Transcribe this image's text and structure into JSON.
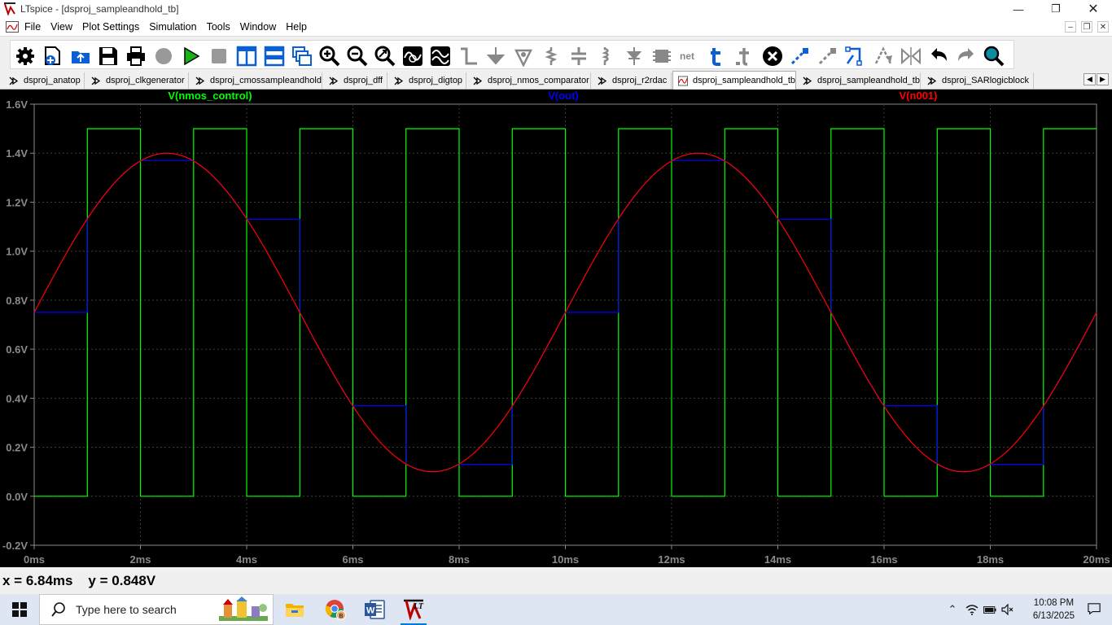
{
  "window": {
    "title": "LTspice - [dsproj_sampleandhold_tb]",
    "controls": [
      "minimize",
      "restore",
      "close"
    ]
  },
  "menu": {
    "items": [
      "File",
      "View",
      "Plot Settings",
      "Simulation",
      "Tools",
      "Window",
      "Help"
    ]
  },
  "toolbar": {
    "buttons": [
      "settings-icon",
      "new-schematic-icon",
      "open-icon",
      "save-icon",
      "print-icon",
      "cut-icon-disabled",
      "run-icon",
      "halt-icon-disabled",
      "tile-vertical-icon",
      "tile-horizontal-icon",
      "cascade-icon",
      "zoom-in-icon",
      "zoom-out-icon",
      "zoom-fit-icon",
      "autorange-icon",
      "sine-wave-icon",
      "wire-icon",
      "ground-icon",
      "label-icon",
      "resistor-icon",
      "capacitor-icon",
      "inductor-icon",
      "diode-icon",
      "component-icon",
      "net-icon",
      "text-icon",
      "spice-directive-icon",
      "delete-icon",
      "duplicate-icon",
      "move-icon",
      "drag-icon",
      "rotate-icon",
      "mirror-icon",
      "undo-icon",
      "redo-icon",
      "find-icon"
    ]
  },
  "tabs": [
    {
      "label": "dsproj_anatop",
      "active": false
    },
    {
      "label": "dsproj_clkgenerator",
      "active": false
    },
    {
      "label": "dsproj_cmossampleandhold",
      "active": false
    },
    {
      "label": "dsproj_dff",
      "active": false
    },
    {
      "label": "dsproj_digtop",
      "active": false
    },
    {
      "label": "dsproj_nmos_comparator",
      "active": false
    },
    {
      "label": "dsproj_r2rdac",
      "active": false
    },
    {
      "label": "dsproj_sampleandhold_tb",
      "active": true
    },
    {
      "label": "dsproj_sampleandhold_tb",
      "active": false
    },
    {
      "label": "dsproj_SARlogicblock",
      "active": false
    }
  ],
  "chart_data": {
    "type": "line",
    "title": "",
    "xlabel": "",
    "ylabel": "",
    "xlim": [
      0,
      20
    ],
    "ylim": [
      -0.2,
      1.6
    ],
    "x_unit": "ms",
    "y_unit": "V",
    "grid": true,
    "x_ticks": [
      "0ms",
      "2ms",
      "4ms",
      "6ms",
      "8ms",
      "10ms",
      "12ms",
      "14ms",
      "16ms",
      "18ms",
      "20ms"
    ],
    "y_ticks": [
      "1.6V",
      "1.4V",
      "1.2V",
      "1.0V",
      "0.8V",
      "0.6V",
      "0.4V",
      "0.2V",
      "0.0V",
      "-0.2V"
    ],
    "series": [
      {
        "name": "V(nmos_control)",
        "color": "#00ff00",
        "kind": "square",
        "low": 0.0,
        "high": 1.5,
        "period_ms": 2.0,
        "high_start_ms": 1.0,
        "high_duration_ms": 1.0,
        "initial_ms": 0.0
      },
      {
        "name": "V(out)",
        "color": "#0000ff",
        "kind": "sample_hold",
        "x": [
          0,
          1,
          2,
          3,
          4,
          5,
          6,
          7,
          8,
          9,
          10,
          11,
          12,
          13,
          14,
          15,
          16,
          17,
          18,
          19,
          20
        ],
        "values": [
          0.75,
          1.13,
          1.37,
          1.37,
          1.13,
          0.75,
          0.37,
          0.13,
          0.13,
          0.37,
          0.75,
          1.13,
          1.37,
          1.37,
          1.13,
          0.75,
          0.37,
          0.13,
          0.13,
          0.37,
          0.75
        ]
      },
      {
        "name": "V(n001)",
        "color": "#ff0000",
        "kind": "sine",
        "offset": 0.75,
        "amplitude": 0.65,
        "frequency_hz": 100
      }
    ]
  },
  "status": {
    "x_label": "x =",
    "x_value": "6.84ms",
    "y_label": "y =",
    "y_value": "0.848V"
  },
  "taskbar": {
    "search_placeholder": "Type here to search",
    "apps": [
      "file-explorer-icon",
      "chrome-icon",
      "word-icon",
      "ltspice-icon"
    ],
    "time": "10:08 PM",
    "date": "6/13/2025"
  }
}
